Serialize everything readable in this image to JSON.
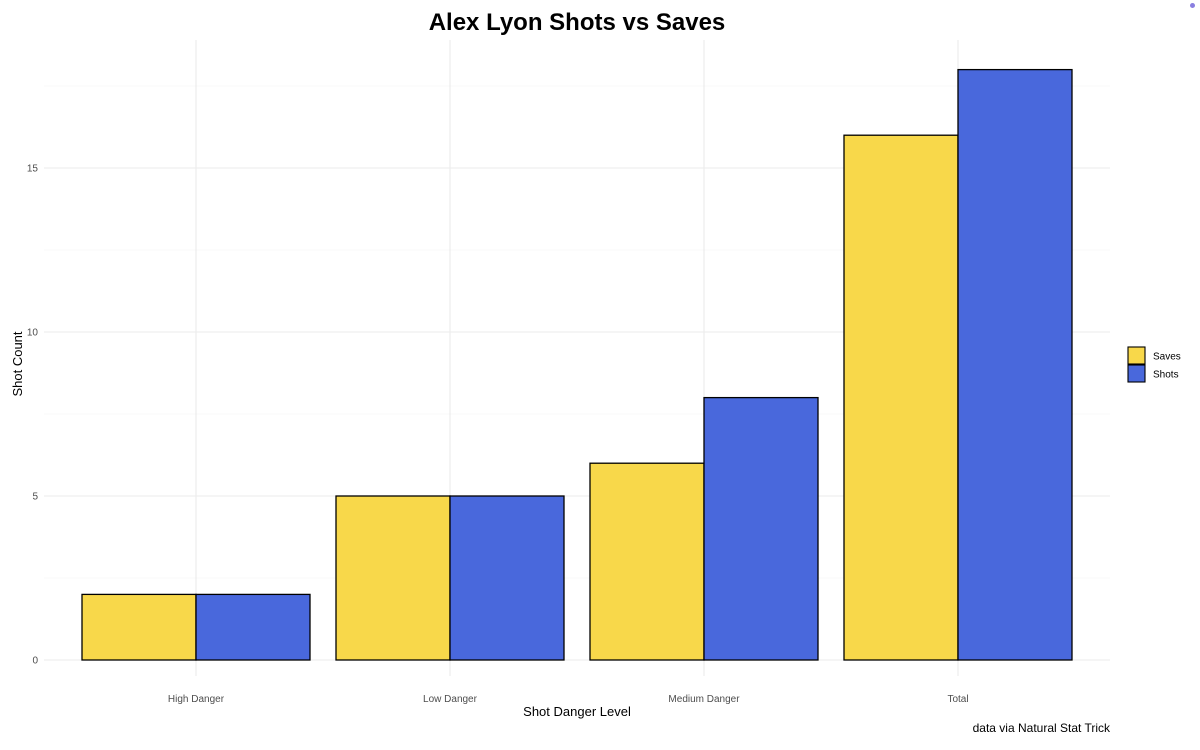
{
  "chart_data": {
    "type": "bar",
    "title": "Alex Lyon Shots vs Saves",
    "xlabel": "Shot Danger Level",
    "ylabel": "Shot Count",
    "caption": "data via Natural Stat Trick",
    "categories": [
      "High Danger",
      "Low Danger",
      "Medium Danger",
      "Total"
    ],
    "series": [
      {
        "name": "Saves",
        "color": "#f8d84a",
        "values": [
          2,
          5,
          6,
          16
        ]
      },
      {
        "name": "Shots",
        "color": "#4968dc",
        "values": [
          2,
          5,
          8,
          18
        ]
      }
    ],
    "ylim": [
      0,
      18
    ],
    "yticks": [
      0,
      5,
      10,
      15
    ],
    "ytick_labels": [
      "0",
      "5",
      "10",
      "15"
    ],
    "grid": true,
    "legend_position": "right"
  }
}
